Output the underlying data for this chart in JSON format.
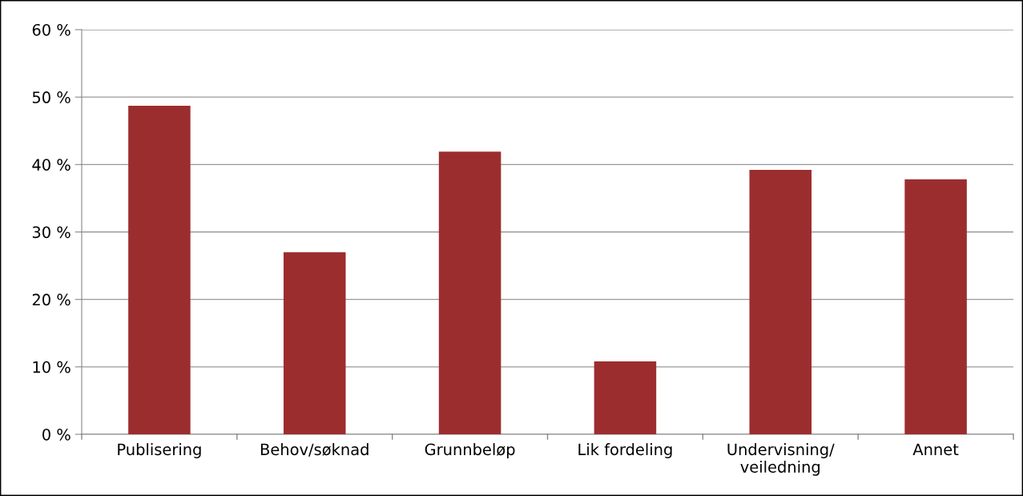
{
  "chart_data": {
    "type": "bar",
    "categories": [
      "Publisering",
      "Behov/søknad",
      "Grunnbeløp",
      "Lik fordeling",
      "Undervisning/\nveiledning",
      "Annet"
    ],
    "values": [
      48.7,
      27.0,
      41.9,
      10.8,
      39.2,
      37.8
    ],
    "color": "#9c2d2f",
    "ylim": [
      0,
      60
    ],
    "yticks": [
      {
        "value": 0,
        "label": "0 %"
      },
      {
        "value": 10,
        "label": "10 %"
      },
      {
        "value": 20,
        "label": "20 %"
      },
      {
        "value": 30,
        "label": "30 %"
      },
      {
        "value": 40,
        "label": "40 %"
      },
      {
        "value": 50,
        "label": "50 %"
      },
      {
        "value": 60,
        "label": "60 %"
      }
    ],
    "grid": "y"
  }
}
